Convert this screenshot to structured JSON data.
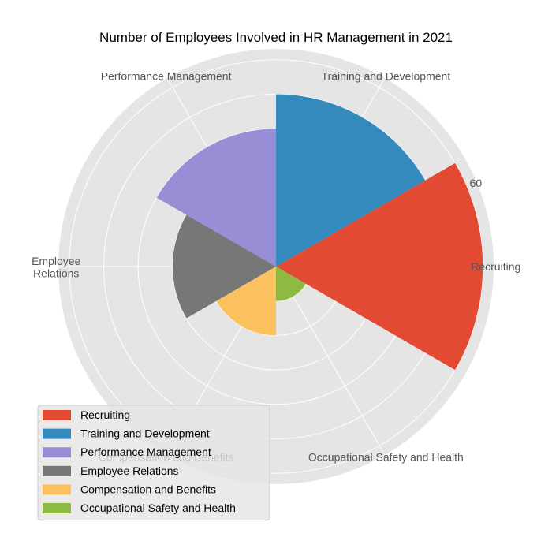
{
  "chart_data": {
    "type": "polar-bar",
    "title": "Number of Employees Involved in HR Management in 2021",
    "categories": [
      "Recruiting",
      "Training and Development",
      "Performance Management",
      "Employee\nRelations",
      "Compensation and Benefits",
      "Occupational Safety and Health"
    ],
    "legend_labels": [
      "Recruiting",
      "Training and Development",
      "Performance Management",
      "Employee Relations",
      "Compensation and Benefits",
      "Occupational Safety and Health"
    ],
    "values": [
      60,
      50,
      40,
      30,
      20,
      10
    ],
    "colors": [
      "#E24A33",
      "#348ABD",
      "#988ED5",
      "#777777",
      "#FBC15E",
      "#8EBA42"
    ],
    "rmax": 60,
    "r_ticks": [
      10,
      20,
      30,
      40,
      50,
      60
    ],
    "r_tick_labels_shown": [
      "60"
    ],
    "grid": true,
    "legend_position": "lower-left",
    "background": "#E5E5E5"
  }
}
